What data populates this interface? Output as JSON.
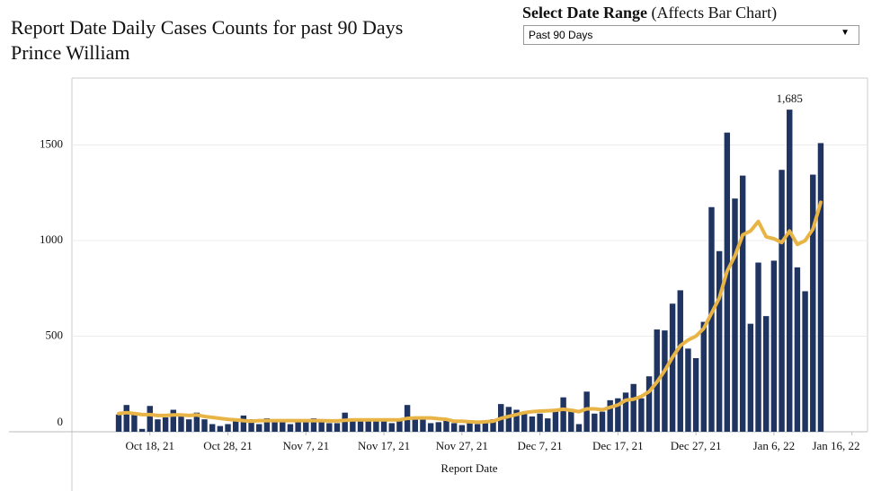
{
  "chart_data": {
    "type": "bar",
    "title": "Report Date Daily Cases Counts for past 90 Days",
    "subtitle": "Prince William",
    "control": {
      "label": "Select Date Range",
      "note": "(Affects Bar Chart)",
      "selected": "Past 90 Days"
    },
    "x_label": "Report Date",
    "x": [
      "2021-10-14",
      "2021-10-15",
      "2021-10-16",
      "2021-10-17",
      "2021-10-18",
      "2021-10-19",
      "2021-10-20",
      "2021-10-21",
      "2021-10-22",
      "2021-10-23",
      "2021-10-24",
      "2021-10-25",
      "2021-10-26",
      "2021-10-27",
      "2021-10-28",
      "2021-10-29",
      "2021-10-30",
      "2021-10-31",
      "2021-11-01",
      "2021-11-02",
      "2021-11-03",
      "2021-11-04",
      "2021-11-05",
      "2021-11-06",
      "2021-11-07",
      "2021-11-08",
      "2021-11-09",
      "2021-11-10",
      "2021-11-11",
      "2021-11-12",
      "2021-11-13",
      "2021-11-14",
      "2021-11-15",
      "2021-11-16",
      "2021-11-17",
      "2021-11-18",
      "2021-11-19",
      "2021-11-20",
      "2021-11-21",
      "2021-11-22",
      "2021-11-23",
      "2021-11-24",
      "2021-11-25",
      "2021-11-26",
      "2021-11-27",
      "2021-11-28",
      "2021-11-29",
      "2021-11-30",
      "2021-12-01",
      "2021-12-02",
      "2021-12-03",
      "2021-12-04",
      "2021-12-05",
      "2021-12-06",
      "2021-12-07",
      "2021-12-08",
      "2021-12-09",
      "2021-12-10",
      "2021-12-11",
      "2021-12-12",
      "2021-12-13",
      "2021-12-14",
      "2021-12-15",
      "2021-12-16",
      "2021-12-17",
      "2021-12-18",
      "2021-12-19",
      "2021-12-20",
      "2021-12-21",
      "2021-12-22",
      "2021-12-23",
      "2021-12-24",
      "2021-12-25",
      "2021-12-26",
      "2021-12-27",
      "2021-12-28",
      "2021-12-29",
      "2021-12-30",
      "2021-12-31",
      "2022-01-01",
      "2022-01-02",
      "2022-01-03",
      "2022-01-04",
      "2022-01-05",
      "2022-01-06",
      "2022-01-07",
      "2022-01-08",
      "2022-01-09",
      "2022-01-10",
      "2022-01-11",
      "2022-01-12"
    ],
    "xlim": [
      "2021-10-08",
      "2022-01-18"
    ],
    "xticks": [
      {
        "value": "2021-10-18",
        "label": "Oct 18, 21"
      },
      {
        "value": "2021-10-28",
        "label": "Oct 28, 21"
      },
      {
        "value": "2021-11-07",
        "label": "Nov 7, 21"
      },
      {
        "value": "2021-11-17",
        "label": "Nov 17, 21"
      },
      {
        "value": "2021-11-27",
        "label": "Nov 27, 21"
      },
      {
        "value": "2021-12-07",
        "label": "Dec 7, 21"
      },
      {
        "value": "2021-12-17",
        "label": "Dec 17, 21"
      },
      {
        "value": "2021-12-27",
        "label": "Dec 27, 21"
      },
      {
        "value": "2022-01-06",
        "label": "Jan 6, 22"
      },
      {
        "value": "2022-01-16",
        "label": "Jan 16, 22"
      }
    ],
    "ylim": [
      0,
      1850
    ],
    "yticks": [
      0,
      500,
      1000,
      1500
    ],
    "grid": true,
    "series": [
      {
        "type": "bar",
        "color": "#1f3461",
        "values": [
          90,
          140,
          90,
          15,
          135,
          65,
          75,
          115,
          90,
          65,
          100,
          65,
          40,
          30,
          40,
          70,
          85,
          65,
          40,
          70,
          65,
          60,
          40,
          60,
          60,
          70,
          60,
          45,
          45,
          100,
          55,
          60,
          65,
          60,
          65,
          45,
          60,
          140,
          75,
          70,
          45,
          50,
          70,
          45,
          35,
          45,
          40,
          50,
          65,
          145,
          130,
          115,
          95,
          80,
          95,
          70,
          120,
          180,
          120,
          40,
          210,
          95,
          105,
          165,
          175,
          205,
          250,
          175,
          290,
          535,
          530,
          670,
          740,
          435,
          385,
          575,
          1175,
          945,
          1565,
          1220,
          1340,
          565,
          885,
          605,
          895,
          1370,
          1685,
          860,
          735,
          1345,
          1510
        ],
        "value_labels": [
          null,
          null,
          null,
          null,
          null,
          null,
          null,
          null,
          null,
          null,
          null,
          null,
          null,
          null,
          null,
          null,
          null,
          null,
          null,
          null,
          null,
          null,
          null,
          null,
          null,
          null,
          null,
          null,
          null,
          null,
          null,
          null,
          null,
          null,
          null,
          null,
          null,
          null,
          null,
          null,
          null,
          null,
          null,
          null,
          null,
          null,
          null,
          null,
          null,
          null,
          null,
          null,
          null,
          null,
          null,
          null,
          null,
          null,
          null,
          null,
          null,
          null,
          null,
          null,
          null,
          null,
          null,
          null,
          null,
          null,
          null,
          null,
          null,
          null,
          null,
          null,
          null,
          null,
          null,
          null,
          null,
          null,
          null,
          null,
          null,
          null,
          "1,685",
          null,
          null,
          null,
          null
        ]
      },
      {
        "type": "line",
        "color": "#e8b446",
        "values": [
          95,
          100,
          95,
          90,
          90,
          85,
          85,
          88,
          88,
          85,
          88,
          80,
          75,
          70,
          65,
          62,
          58,
          55,
          58,
          58,
          58,
          58,
          58,
          58,
          58,
          58,
          58,
          57,
          57,
          60,
          62,
          62,
          62,
          62,
          62,
          62,
          62,
          70,
          72,
          72,
          72,
          68,
          65,
          55,
          55,
          52,
          50,
          52,
          55,
          70,
          80,
          90,
          100,
          105,
          108,
          110,
          112,
          118,
          112,
          105,
          120,
          120,
          115,
          128,
          140,
          165,
          170,
          185,
          210,
          260,
          320,
          390,
          450,
          480,
          500,
          540,
          620,
          700,
          840,
          920,
          1030,
          1050,
          1100,
          1020,
          1010,
          990,
          1050,
          980,
          1000,
          1060,
          1200
        ]
      }
    ]
  }
}
